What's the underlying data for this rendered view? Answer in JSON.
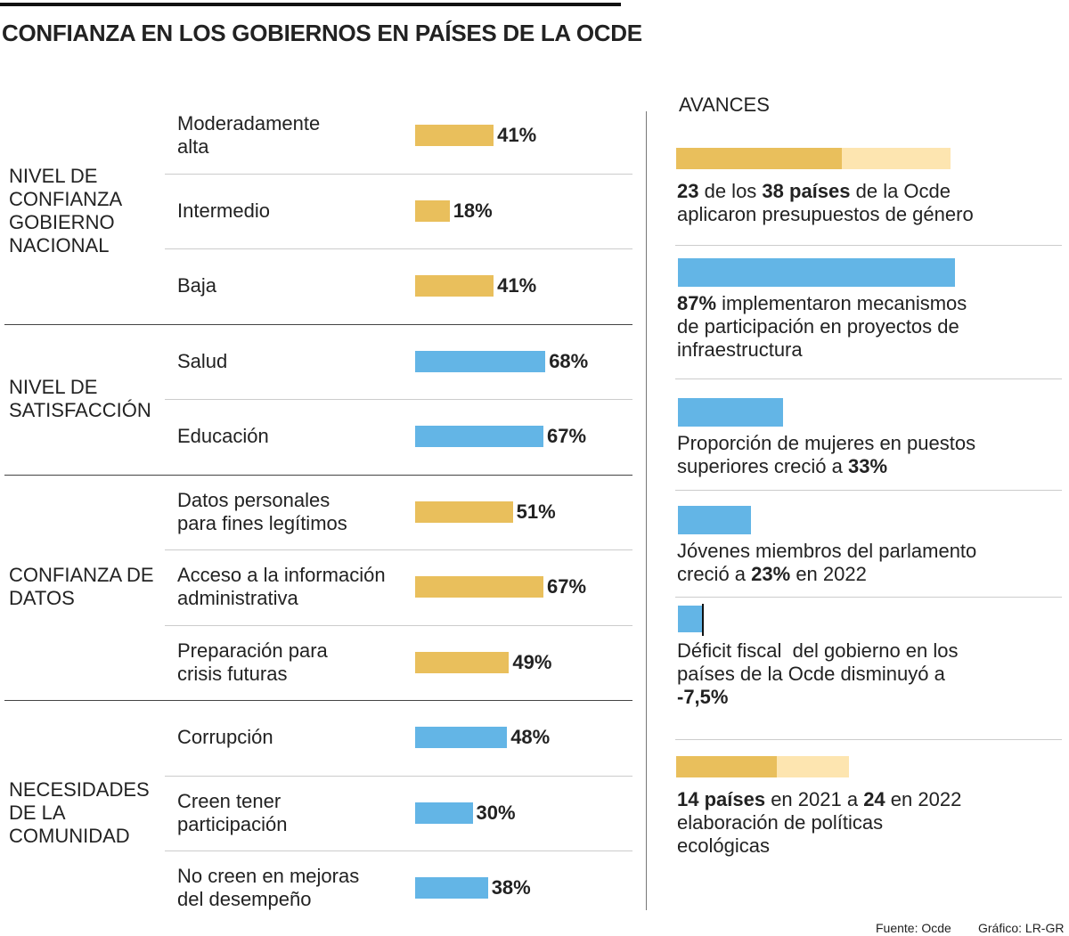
{
  "title": "CONFIANZA EN LOS GOBIERNOS EN PAÍSES DE LA OCDE",
  "groups": [
    {
      "label": "NIVEL DE CONFIANZA GOBIERNO NACIONAL",
      "color": "#e9bf5c",
      "categories": [
        "Moderadamente\nalta",
        "Intermedio",
        "Baja"
      ],
      "values": [
        41,
        18,
        41
      ],
      "value_labels": [
        "41%",
        "18%",
        "41%"
      ]
    },
    {
      "label": "NIVEL DE SATISFACCIÓN",
      "color": "#63b5e6",
      "categories": [
        "Salud",
        "Educación"
      ],
      "values": [
        68,
        67
      ],
      "value_labels": [
        "68%",
        "67%"
      ]
    },
    {
      "label": "CONFIANZA DE DATOS",
      "color": "#e9bf5c",
      "categories": [
        "Datos personales\npara fines legítimos",
        "Acceso a la información\nadministrativa",
        "Preparación para\ncrisis futuras"
      ],
      "values": [
        51,
        67,
        49
      ],
      "value_labels": [
        "51%",
        "67%",
        "49%"
      ]
    },
    {
      "label": "NECESIDADES DE LA COMUNIDAD",
      "color": "#63b5e6",
      "categories": [
        "Corrupción",
        "Creen tener\nparticipación",
        "No creen en mejoras\ndel desempeño"
      ],
      "values": [
        48,
        30,
        38
      ],
      "value_labels": [
        "48%",
        "30%",
        "38%"
      ]
    }
  ],
  "advances": {
    "title": "AVANCES",
    "items": [
      {
        "values": [
          23,
          38
        ],
        "colors": [
          "#e9bf5c",
          "#fde5b0"
        ],
        "segments": [
          {
            "text": "23",
            "bold": true
          },
          {
            "text": " de los "
          },
          {
            "text": "38 países",
            "bold": true
          },
          {
            "text": " de la Ocde\naplicaron presupuestos de género"
          }
        ]
      },
      {
        "values": [
          87
        ],
        "colors": [
          "#63b5e6"
        ],
        "segments": [
          {
            "text": "87%",
            "bold": true
          },
          {
            "text": " implementaron mecanismos\nde participación en proyectos de\ninfraestructura"
          }
        ]
      },
      {
        "values": [
          33
        ],
        "colors": [
          "#63b5e6"
        ],
        "segments": [
          {
            "text": "Proporción de mujeres en puestos\nsuperiores creció a "
          },
          {
            "text": "33%",
            "bold": true
          }
        ]
      },
      {
        "values": [
          23
        ],
        "colors": [
          "#63b5e6"
        ],
        "segments": [
          {
            "text": "Jóvenes miembros del parlamento\ncreció a "
          },
          {
            "text": "23%",
            "bold": true
          },
          {
            "text": " en 2022"
          }
        ]
      },
      {
        "values": [
          -7.5
        ],
        "colors": [
          "#63b5e6"
        ],
        "segments": [
          {
            "text": "Déficit fiscal  del gobierno en los\npaíses de la Ocde disminuyó a\n"
          },
          {
            "text": "-7,5%",
            "bold": true
          }
        ]
      },
      {
        "values": [
          14,
          24
        ],
        "colors": [
          "#e9bf5c",
          "#fde5b0"
        ],
        "segments": [
          {
            "text": "14 países",
            "bold": true
          },
          {
            "text": " en 2021 a "
          },
          {
            "text": "24",
            "bold": true
          },
          {
            "text": " en 2022\nelaboración de políticas\necológicas"
          }
        ]
      }
    ]
  },
  "footer": {
    "source": "Fuente: Ocde",
    "credit": "Gráfico: LR-GR"
  }
}
